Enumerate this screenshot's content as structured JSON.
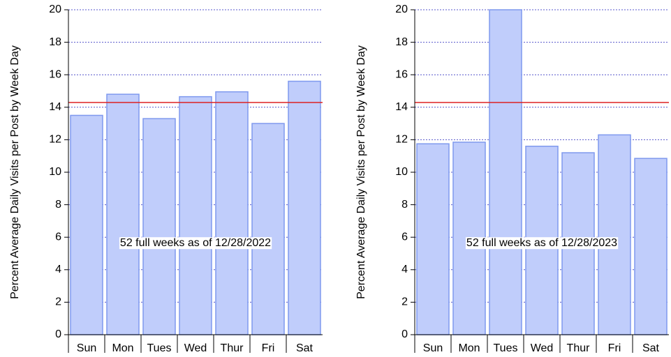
{
  "chart_data": [
    {
      "type": "bar",
      "y_label": "Percent Average Daily Visits per Post by Week Day",
      "annotation": "52 full weeks as of 12/28/2022",
      "categories": [
        "Sun",
        "Mon",
        "Tues",
        "Wed",
        "Thur",
        "Fri",
        "Sat"
      ],
      "values": [
        13.5,
        14.8,
        13.3,
        14.65,
        14.95,
        13.0,
        15.6
      ],
      "color": "#c0cdfb",
      "edge_color": "#7f99ee",
      "reference_line": 14.29,
      "reference_color": "#dd2222",
      "ylim": [
        0,
        20
      ],
      "yticks": [
        0,
        2,
        4,
        6,
        8,
        10,
        12,
        14,
        16,
        18,
        20
      ],
      "grid": true
    },
    {
      "type": "bar",
      "y_label": "Percent Average Daily Visits per Post by Week Day",
      "annotation": "52 full weeks as of 12/28/2023",
      "categories": [
        "Sun",
        "Mon",
        "Tues",
        "Wed",
        "Thur",
        "Fri",
        "Sat"
      ],
      "values": [
        11.75,
        11.85,
        20,
        11.6,
        11.2,
        12.3,
        10.85
      ],
      "color": "#c0cdfb",
      "edge_color": "#7f99ee",
      "reference_line": 14.29,
      "reference_color": "#dd2222",
      "ylim": [
        0,
        20
      ],
      "yticks": [
        0,
        2,
        4,
        6,
        8,
        10,
        12,
        14,
        16,
        18,
        20
      ],
      "grid": true
    }
  ]
}
